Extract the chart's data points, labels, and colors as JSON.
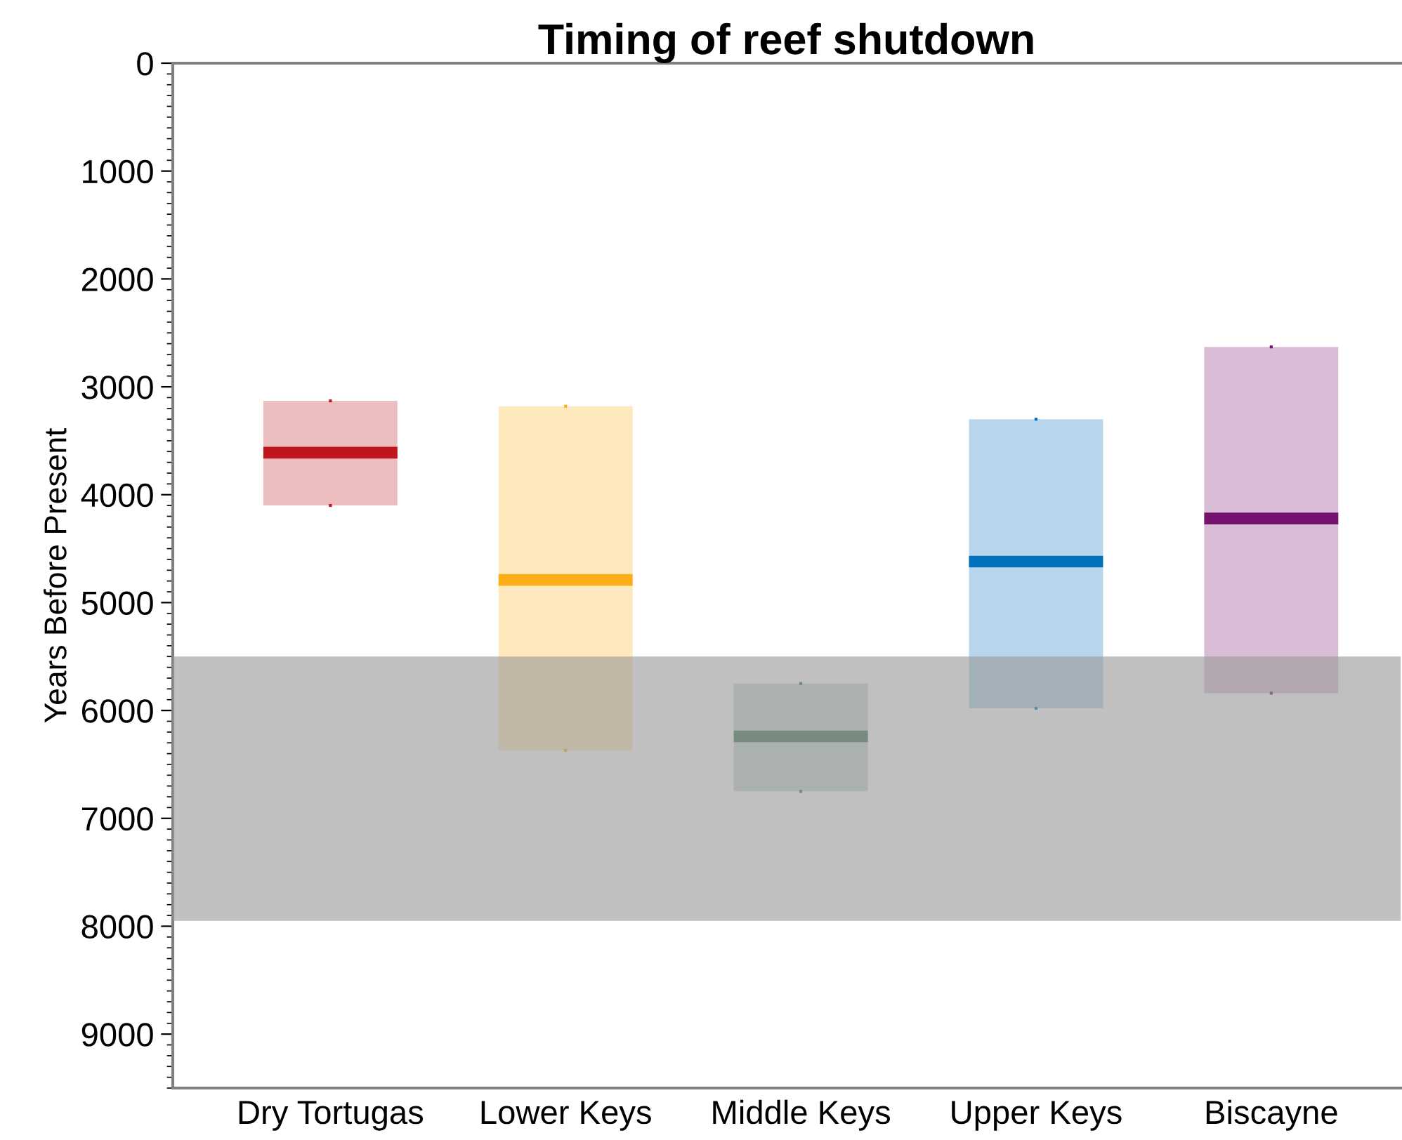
{
  "chart_data": {
    "type": "box",
    "title": "Timing of reef shutdown",
    "ylabel": "Years Before Present",
    "categories": [
      "Dry Tortugas",
      "Lower Keys",
      "Middle Keys",
      "Upper Keys",
      "Biscayne"
    ],
    "boxes": [
      {
        "low": 3130,
        "q1": 3130,
        "median": 3610,
        "q3": 4100,
        "high": 4100
      },
      {
        "low": 3180,
        "q1": 3180,
        "median": 4790,
        "q3": 6370,
        "high": 6370
      },
      {
        "low": 5750,
        "q1": 5750,
        "median": 6240,
        "q3": 6750,
        "high": 6750
      },
      {
        "low": 3300,
        "q1": 3300,
        "median": 4620,
        "q3": 5980,
        "high": 5980
      },
      {
        "low": 2630,
        "q1": 2630,
        "median": 4220,
        "q3": 5840,
        "high": 5840
      }
    ],
    "colors": [
      "#c0141e",
      "#fbae17",
      "#3e7252",
      "#0071bc",
      "#751270"
    ],
    "ylim": [
      9500,
      0
    ],
    "yticks": [
      0,
      1000,
      2000,
      3000,
      4000,
      5000,
      6000,
      7000,
      8000,
      9000
    ],
    "bands": [
      {
        "axis": "y",
        "from": 5500,
        "to": 7950,
        "color": "#9a9a9a"
      }
    ],
    "grid": false,
    "legend": false
  }
}
